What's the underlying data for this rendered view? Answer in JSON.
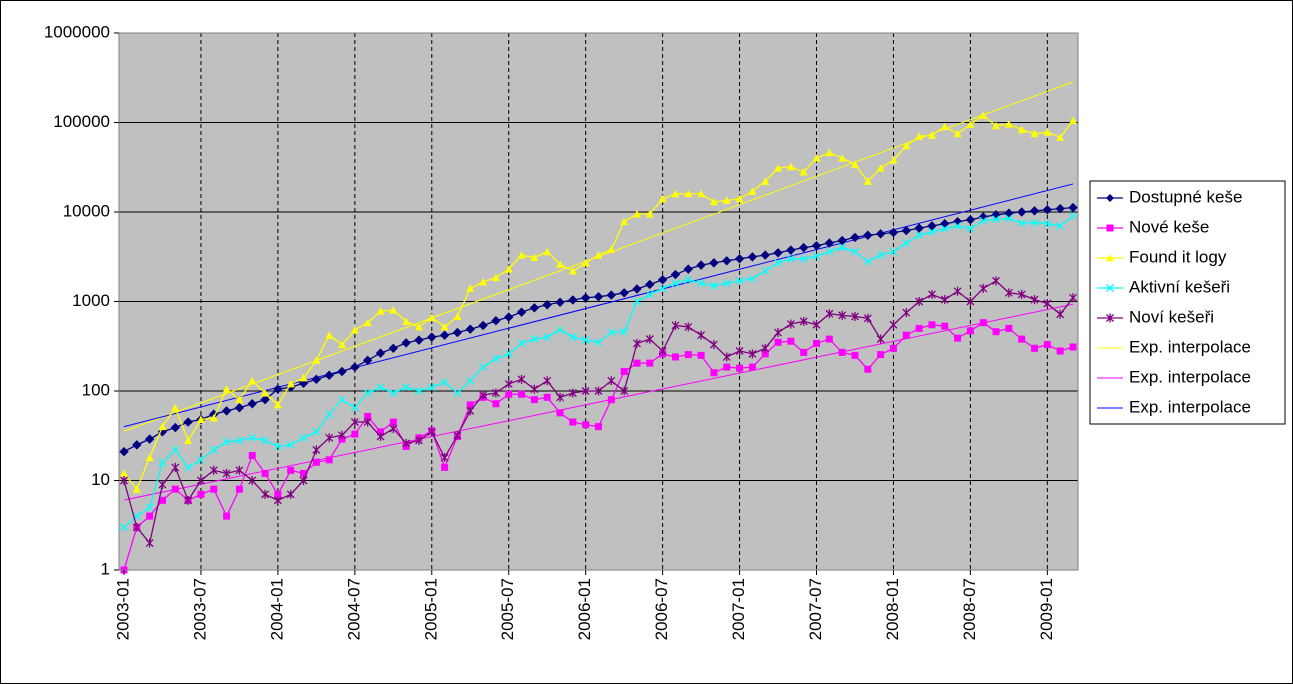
{
  "chart_data": {
    "type": "line",
    "log_scale": true,
    "grid": true,
    "legend": "right",
    "x": [
      "2003-01",
      null,
      null,
      null,
      null,
      null,
      "2003-07",
      null,
      null,
      null,
      null,
      null,
      "2004-01",
      null,
      null,
      null,
      null,
      null,
      "2004-07",
      null,
      null,
      null,
      null,
      null,
      "2005-01",
      null,
      null,
      null,
      null,
      null,
      "2005-07",
      null,
      null,
      null,
      null,
      null,
      "2006-01",
      null,
      null,
      null,
      null,
      null,
      "2006-07",
      null,
      null,
      null,
      null,
      null,
      "2007-01",
      null,
      null,
      null,
      null,
      null,
      "2007-07",
      null,
      null,
      null,
      null,
      null,
      "2008-01",
      null,
      null,
      null,
      null,
      null,
      "2008-07",
      null,
      null,
      null,
      null,
      null,
      "2009-01",
      null,
      null
    ],
    "ylim": [
      1,
      1000000
    ],
    "yticks": [
      1,
      10,
      100,
      1000,
      10000,
      100000,
      1000000
    ],
    "series": [
      {
        "name": "Dostupné keše",
        "color": "#000080",
        "marker": "diamond",
        "values": [
          21,
          25,
          29,
          35,
          39,
          45,
          48,
          55,
          60,
          65,
          72,
          80,
          105,
          110,
          122,
          135,
          150,
          165,
          185,
          220,
          265,
          300,
          345,
          370,
          400,
          420,
          450,
          490,
          540,
          610,
          670,
          760,
          850,
          920,
          980,
          1040,
          1100,
          1130,
          1180,
          1250,
          1380,
          1550,
          1750,
          2000,
          2300,
          2550,
          2700,
          2850,
          3000,
          3150,
          3300,
          3500,
          3750,
          4000,
          4200,
          4500,
          4800,
          5200,
          5500,
          5700,
          5900,
          6200,
          6600,
          7000,
          7400,
          7800,
          8200,
          8800,
          9300,
          9700,
          10000,
          10300,
          10600,
          10900,
          11200
        ]
      },
      {
        "name": "Nové keše",
        "color": "#ff00ff",
        "marker": "square",
        "values": [
          1,
          3,
          4,
          6,
          8,
          6,
          7,
          8,
          4,
          8,
          19,
          12,
          7,
          13,
          12,
          16,
          17,
          29,
          33,
          52,
          35,
          45,
          24,
          30,
          36,
          14,
          31,
          70,
          85,
          72,
          92,
          92,
          80,
          85,
          57,
          45,
          42,
          40,
          80,
          165,
          205,
          205,
          260,
          240,
          255,
          250,
          160,
          185,
          180,
          185,
          260,
          350,
          360,
          270,
          340,
          380,
          270,
          250,
          175,
          255,
          300,
          420,
          500,
          550,
          530,
          390,
          470,
          580,
          460,
          500,
          380,
          300,
          330,
          280,
          310
        ]
      },
      {
        "name": "Found it logy",
        "color": "#ffff00",
        "marker": "triangle",
        "values": [
          12,
          8,
          18,
          40,
          65,
          28,
          48,
          50,
          105,
          80,
          130,
          95,
          70,
          120,
          140,
          220,
          420,
          330,
          480,
          580,
          780,
          800,
          600,
          520,
          660,
          520,
          680,
          1400,
          1650,
          1850,
          2300,
          3300,
          3100,
          3600,
          2600,
          2200,
          2700,
          3300,
          3800,
          7800,
          9500,
          9500,
          14000,
          16000,
          16000,
          16000,
          13000,
          13500,
          14000,
          17000,
          22000,
          31000,
          32000,
          28000,
          40000,
          46000,
          40000,
          34000,
          22000,
          31000,
          38000,
          55000,
          70000,
          72000,
          90000,
          75000,
          95000,
          120000,
          92000,
          96000,
          83000,
          75000,
          78000,
          68000,
          105000
        ]
      },
      {
        "name": "Aktivní kešeři",
        "color": "#00ffff",
        "marker": "x",
        "values": [
          3,
          4,
          5,
          16,
          22,
          14,
          17,
          22,
          27,
          28,
          30,
          28,
          24,
          25,
          30,
          35,
          55,
          80,
          65,
          95,
          110,
          95,
          110,
          100,
          110,
          125,
          95,
          130,
          185,
          230,
          260,
          340,
          380,
          400,
          480,
          400,
          370,
          350,
          450,
          460,
          1000,
          1200,
          1400,
          1600,
          1750,
          1600,
          1500,
          1600,
          1700,
          1800,
          2200,
          2700,
          3000,
          3000,
          3200,
          3600,
          4000,
          3600,
          2800,
          3300,
          3600,
          4500,
          5500,
          6000,
          6500,
          7000,
          6500,
          8000,
          8300,
          8500,
          7500,
          7600,
          7400,
          7000,
          9000
        ]
      },
      {
        "name": "Noví kešeři",
        "color": "#800080",
        "marker": "star",
        "values": [
          10,
          3,
          2,
          9,
          14,
          6,
          10,
          13,
          12,
          13,
          10,
          7,
          6,
          7,
          10,
          22,
          30,
          32,
          45,
          45,
          31,
          38,
          26,
          28,
          35,
          18,
          32,
          60,
          90,
          95,
          120,
          135,
          105,
          130,
          85,
          95,
          100,
          100,
          130,
          100,
          340,
          380,
          280,
          540,
          520,
          420,
          330,
          240,
          280,
          260,
          300,
          450,
          560,
          600,
          550,
          730,
          700,
          680,
          650,
          380,
          550,
          750,
          1000,
          1200,
          1050,
          1300,
          1000,
          1400,
          1700,
          1250,
          1200,
          1050,
          950,
          720,
          1100
        ]
      }
    ],
    "trendlines": [
      {
        "name": "Exp. interpolace",
        "type": "exponential",
        "color": "#ffff00",
        "series": 2
      },
      {
        "name": "Exp. interpolace",
        "type": "exponential",
        "color": "#ff00ff",
        "series": 1
      },
      {
        "name": "Exp. interpolace",
        "type": "exponential",
        "color": "#0000ff",
        "series": 0
      }
    ]
  }
}
